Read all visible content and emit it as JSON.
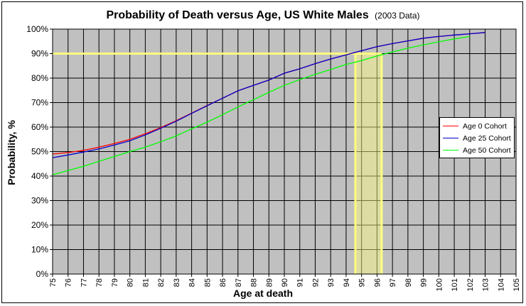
{
  "chart_data": {
    "type": "line",
    "title": "Probability of Death versus Age, US White Males",
    "subtitle": "(2003 Data)",
    "xlabel": "Age at death",
    "ylabel": "Probability, %",
    "xlim": [
      75,
      105
    ],
    "ylim": [
      0,
      100
    ],
    "x_ticks": [
      "75",
      "76",
      "77",
      "78",
      "79",
      "80",
      "81",
      "82",
      "83",
      "84",
      "85",
      "86",
      "87",
      "88",
      "89",
      "90",
      "91",
      "92",
      "93",
      "94",
      "95",
      "96",
      "97",
      "98",
      "99",
      "100",
      "101",
      "102",
      "103",
      "104",
      "105"
    ],
    "y_ticks": [
      "0%",
      "10%",
      "20%",
      "30%",
      "40%",
      "50%",
      "60%",
      "70%",
      "80%",
      "90%",
      "100%"
    ],
    "grid": true,
    "legend_position": "right",
    "plot_background": "#c0c0c0",
    "series": [
      {
        "name": "Age 0 Cohort",
        "color": "#ff0000",
        "x": [
          75,
          76,
          77,
          78,
          79,
          80,
          81,
          82,
          83,
          84,
          85,
          86,
          87,
          88,
          89,
          90,
          91,
          92,
          93,
          94,
          95,
          96,
          97,
          98,
          99,
          100,
          101,
          102,
          103
        ],
        "values": [
          49,
          49.6,
          50.5,
          51.8,
          53.3,
          55,
          57.3,
          59.8,
          62.6,
          65.7,
          68.8,
          71.8,
          74.8,
          77,
          79.2,
          82,
          83.8,
          85.9,
          87.8,
          89.5,
          91.2,
          92.8,
          94.1,
          95.2,
          96.3,
          97,
          97.6,
          98.1,
          98.6
        ]
      },
      {
        "name": "Age 25 Cohort",
        "color": "#0000cc",
        "x": [
          75,
          76,
          77,
          78,
          79,
          80,
          81,
          82,
          83,
          84,
          85,
          86,
          87,
          88,
          89,
          90,
          91,
          92,
          93,
          94,
          95,
          96,
          97,
          98,
          99,
          100,
          101,
          102,
          103
        ],
        "values": [
          47.5,
          48.6,
          49.8,
          51.1,
          52.7,
          54.4,
          56.8,
          59.5,
          62.4,
          65.6,
          68.7,
          71.8,
          74.8,
          77,
          79.2,
          82,
          83.8,
          85.9,
          87.8,
          89.5,
          91.2,
          92.8,
          94.1,
          95.2,
          96.3,
          97,
          97.6,
          98.1,
          98.6
        ]
      },
      {
        "name": "Age 50 Cohort",
        "color": "#00ff00",
        "x": [
          75,
          76,
          77,
          78,
          79,
          80,
          81,
          82,
          83,
          84,
          85,
          86,
          87,
          88,
          89,
          90,
          91,
          92,
          93,
          94,
          95,
          96,
          97,
          98,
          99,
          100,
          101,
          102
        ],
        "values": [
          40.5,
          42.3,
          44,
          46,
          48,
          50,
          51.8,
          54,
          56.4,
          59.3,
          62,
          65.1,
          68.2,
          71.2,
          74.2,
          77,
          79.4,
          81.5,
          83.5,
          85.6,
          87.2,
          89,
          90.7,
          92.2,
          93.6,
          94.8,
          96,
          97
        ]
      }
    ],
    "highlight": {
      "color": "#ffff80",
      "y_level": 90,
      "x_range": [
        94.6,
        96.3
      ]
    }
  }
}
